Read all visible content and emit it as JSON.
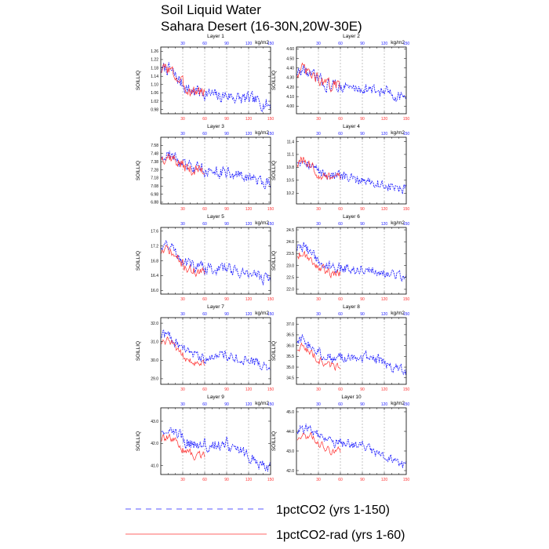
{
  "figure": {
    "title_line1": "Soil Liquid Water",
    "title_line2": "Sahara Desert (16-30N,20W-30E)"
  },
  "legend": {
    "entries": [
      {
        "label": "1pctCO2 (yrs 1-150)",
        "color": "#2020ff",
        "dash": "dashed"
      },
      {
        "label": "1pctCO2-rad (yrs 1-60)",
        "color": "#ff3030",
        "dash": "solid"
      }
    ]
  },
  "colors": {
    "blue": "#2020ff",
    "red": "#ff3030",
    "axis": "#000000",
    "grid": "#888888"
  },
  "chart_data": [
    {
      "type": "line",
      "title": "Layer 1",
      "ylabel": "SOILLIQ",
      "units": "kg/m2",
      "xlim": [
        0,
        150
      ],
      "ylim": [
        0.96,
        1.28
      ],
      "yticks": [
        0.98,
        1.02,
        1.06,
        1.1,
        1.14,
        1.18,
        1.22,
        1.26
      ],
      "yticklabels": [
        "0.98",
        "1.02",
        "1.06",
        "1.10",
        "1.14",
        "1.18",
        "1.22",
        "1.26"
      ],
      "xticks": [
        30,
        60,
        90,
        120,
        150
      ],
      "grid_x": [
        30,
        60,
        90,
        120
      ],
      "blue_knots": [
        [
          0,
          1.17
        ],
        [
          10,
          1.18
        ],
        [
          20,
          1.14
        ],
        [
          30,
          1.1
        ],
        [
          40,
          1.07
        ],
        [
          50,
          1.07
        ],
        [
          60,
          1.06
        ],
        [
          70,
          1.05
        ],
        [
          80,
          1.04
        ],
        [
          90,
          1.05
        ],
        [
          100,
          1.04
        ],
        [
          110,
          1.03
        ],
        [
          120,
          1.03
        ],
        [
          130,
          1.02
        ],
        [
          140,
          1.01
        ],
        [
          150,
          1.0
        ]
      ],
      "blue_amp": 0.05,
      "red_amp": 0.05,
      "red_offset": 0.0
    },
    {
      "type": "line",
      "title": "Layer 2",
      "ylabel": "SOILLIQ",
      "units": "kg/m2",
      "xlim": [
        0,
        150
      ],
      "ylim": [
        3.92,
        4.62
      ],
      "yticks": [
        4.0,
        4.1,
        4.2,
        4.3,
        4.4,
        4.5,
        4.6
      ],
      "yticklabels": [
        "4.00",
        "4.10",
        "4.20",
        "4.30",
        "4.40",
        "4.50",
        "4.60"
      ],
      "xticks": [
        30,
        60,
        90,
        120,
        150
      ],
      "grid_x": [
        30,
        60,
        90,
        120
      ],
      "blue_knots": [
        [
          0,
          4.35
        ],
        [
          10,
          4.38
        ],
        [
          20,
          4.32
        ],
        [
          30,
          4.28
        ],
        [
          40,
          4.22
        ],
        [
          50,
          4.22
        ],
        [
          60,
          4.21
        ],
        [
          70,
          4.2
        ],
        [
          80,
          4.18
        ],
        [
          90,
          4.19
        ],
        [
          100,
          4.17
        ],
        [
          110,
          4.16
        ],
        [
          120,
          4.15
        ],
        [
          130,
          4.13
        ],
        [
          140,
          4.11
        ],
        [
          150,
          4.1
        ]
      ],
      "blue_amp": 0.1,
      "red_amp": 0.1,
      "red_offset": 0.0
    },
    {
      "type": "line",
      "title": "Layer 3",
      "ylabel": "SOILLIQ",
      "units": "kg/m2",
      "xlim": [
        0,
        150
      ],
      "ylim": [
        6.86,
        7.68
      ],
      "yticks": [
        6.88,
        6.98,
        7.08,
        7.18,
        7.28,
        7.38,
        7.48,
        7.58
      ],
      "yticklabels": [
        "6.88",
        "6.98",
        "7.08",
        "7.18",
        "7.28",
        "7.38",
        "7.48",
        "7.58"
      ],
      "xticks": [
        30,
        60,
        90,
        120,
        150
      ],
      "grid_x": [
        30,
        60,
        90,
        120
      ],
      "blue_knots": [
        [
          0,
          7.45
        ],
        [
          10,
          7.48
        ],
        [
          20,
          7.42
        ],
        [
          30,
          7.35
        ],
        [
          40,
          7.3
        ],
        [
          50,
          7.3
        ],
        [
          60,
          7.28
        ],
        [
          70,
          7.26
        ],
        [
          80,
          7.24
        ],
        [
          90,
          7.25
        ],
        [
          100,
          7.22
        ],
        [
          110,
          7.2
        ],
        [
          120,
          7.18
        ],
        [
          130,
          7.16
        ],
        [
          140,
          7.14
        ],
        [
          150,
          7.12
        ]
      ],
      "blue_amp": 0.12,
      "red_amp": 0.12,
      "red_offset": -0.02
    },
    {
      "type": "line",
      "title": "Layer 4",
      "ylabel": "SOILLIQ",
      "units": "kg/m2",
      "xlim": [
        0,
        150
      ],
      "ylim": [
        9.95,
        11.5
      ],
      "yticks": [
        10.2,
        10.5,
        10.8,
        11.1,
        11.4
      ],
      "yticklabels": [
        "10.2",
        "10.5",
        "10.8",
        "11.1",
        "11.4"
      ],
      "xticks": [
        30,
        60,
        90,
        120,
        150
      ],
      "grid_x": [
        30,
        60,
        90,
        120
      ],
      "blue_knots": [
        [
          0,
          10.95
        ],
        [
          10,
          11.0
        ],
        [
          20,
          10.85
        ],
        [
          30,
          10.72
        ],
        [
          40,
          10.62
        ],
        [
          50,
          10.62
        ],
        [
          60,
          10.58
        ],
        [
          70,
          10.55
        ],
        [
          80,
          10.5
        ],
        [
          90,
          10.52
        ],
        [
          100,
          10.47
        ],
        [
          110,
          10.43
        ],
        [
          120,
          10.38
        ],
        [
          130,
          10.34
        ],
        [
          140,
          10.3
        ],
        [
          150,
          10.26
        ]
      ],
      "blue_amp": 0.2,
      "red_amp": 0.2,
      "red_offset": -0.05
    },
    {
      "type": "line",
      "title": "Layer 5",
      "ylabel": "SOILLIQ",
      "units": "kg/m2",
      "xlim": [
        0,
        150
      ],
      "ylim": [
        15.9,
        17.7
      ],
      "yticks": [
        16.0,
        16.4,
        16.8,
        17.2,
        17.6
      ],
      "yticklabels": [
        "16.0",
        "16.4",
        "16.8",
        "17.2",
        "17.6"
      ],
      "xticks": [
        30,
        60,
        90,
        120,
        150
      ],
      "grid_x": [
        30,
        60,
        90,
        120
      ],
      "blue_knots": [
        [
          0,
          17.2
        ],
        [
          10,
          17.25
        ],
        [
          20,
          17.05
        ],
        [
          30,
          16.85
        ],
        [
          40,
          16.7
        ],
        [
          50,
          16.65
        ],
        [
          60,
          16.6
        ],
        [
          70,
          16.6
        ],
        [
          80,
          16.55
        ],
        [
          90,
          16.6
        ],
        [
          100,
          16.55
        ],
        [
          110,
          16.5
        ],
        [
          120,
          16.45
        ],
        [
          130,
          16.4
        ],
        [
          140,
          16.35
        ],
        [
          150,
          16.3
        ]
      ],
      "blue_amp": 0.25,
      "red_amp": 0.22,
      "red_offset": -0.15
    },
    {
      "type": "line",
      "title": "Layer 6",
      "ylabel": "SOILLIQ",
      "units": "kg/m2",
      "xlim": [
        0,
        150
      ],
      "ylim": [
        21.8,
        24.6
      ],
      "yticks": [
        22.0,
        22.5,
        23.0,
        23.5,
        24.0,
        24.5
      ],
      "yticklabels": [
        "22.0",
        "22.5",
        "23.0",
        "23.5",
        "24.0",
        "24.5"
      ],
      "xticks": [
        30,
        60,
        90,
        120,
        150
      ],
      "grid_x": [
        30,
        60,
        90,
        120
      ],
      "blue_knots": [
        [
          0,
          23.7
        ],
        [
          10,
          23.8
        ],
        [
          20,
          23.5
        ],
        [
          30,
          23.2
        ],
        [
          40,
          23.0
        ],
        [
          50,
          22.95
        ],
        [
          60,
          22.9
        ],
        [
          70,
          22.9
        ],
        [
          80,
          22.85
        ],
        [
          90,
          22.9
        ],
        [
          100,
          22.85
        ],
        [
          110,
          22.8
        ],
        [
          120,
          22.7
        ],
        [
          130,
          22.6
        ],
        [
          140,
          22.55
        ],
        [
          150,
          22.5
        ]
      ],
      "blue_amp": 0.35,
      "red_amp": 0.3,
      "red_offset": -0.25
    },
    {
      "type": "line",
      "title": "Layer 7",
      "ylabel": "SOILLIQ",
      "units": "kg/m2",
      "xlim": [
        0,
        150
      ],
      "ylim": [
        28.7,
        32.3
      ],
      "yticks": [
        29.0,
        30.0,
        31.0,
        32.0
      ],
      "yticklabels": [
        "29.0",
        "30.0",
        "31.0",
        "32.0"
      ],
      "xticks": [
        30,
        60,
        90,
        120,
        150
      ],
      "grid_x": [
        30,
        60,
        90,
        120
      ],
      "blue_knots": [
        [
          0,
          31.3
        ],
        [
          10,
          31.4
        ],
        [
          20,
          31.0
        ],
        [
          30,
          30.6
        ],
        [
          40,
          30.3
        ],
        [
          50,
          30.2
        ],
        [
          60,
          30.2
        ],
        [
          70,
          30.3
        ],
        [
          80,
          30.2
        ],
        [
          90,
          30.3
        ],
        [
          100,
          30.2
        ],
        [
          110,
          30.1
        ],
        [
          120,
          29.9
        ],
        [
          130,
          29.8
        ],
        [
          140,
          29.7
        ],
        [
          150,
          29.6
        ]
      ],
      "blue_amp": 0.45,
      "red_amp": 0.35,
      "red_offset": -0.35
    },
    {
      "type": "line",
      "title": "Layer 8",
      "ylabel": "SOILLIQ",
      "units": "kg/m2",
      "xlim": [
        0,
        150
      ],
      "ylim": [
        34.2,
        37.3
      ],
      "yticks": [
        34.5,
        35.0,
        35.5,
        36.0,
        36.5,
        37.0
      ],
      "yticklabels": [
        "34.5",
        "35.0",
        "35.5",
        "36.0",
        "36.5",
        "37.0"
      ],
      "xticks": [
        30,
        60,
        90,
        120,
        150
      ],
      "grid_x": [
        30,
        60,
        90,
        120
      ],
      "blue_knots": [
        [
          0,
          36.2
        ],
        [
          10,
          36.3
        ],
        [
          20,
          36.0
        ],
        [
          30,
          35.7
        ],
        [
          40,
          35.5
        ],
        [
          50,
          35.4
        ],
        [
          60,
          35.4
        ],
        [
          70,
          35.5
        ],
        [
          80,
          35.4
        ],
        [
          90,
          35.5
        ],
        [
          100,
          35.4
        ],
        [
          110,
          35.3
        ],
        [
          120,
          35.2
        ],
        [
          130,
          35.05
        ],
        [
          140,
          34.9
        ],
        [
          150,
          34.8
        ]
      ],
      "blue_amp": 0.4,
      "red_amp": 0.3,
      "red_offset": -0.35
    },
    {
      "type": "line",
      "title": "Layer 9",
      "ylabel": "SOILLIQ",
      "units": "kg/m2",
      "xlim": [
        0,
        150
      ],
      "ylim": [
        40.6,
        43.6
      ],
      "yticks": [
        41.0,
        42.0,
        43.0
      ],
      "yticklabels": [
        "41.0",
        "42.0",
        "43.0"
      ],
      "xticks": [
        30,
        60,
        90,
        120,
        150
      ],
      "grid_x": [
        30,
        60,
        90,
        120
      ],
      "blue_knots": [
        [
          0,
          42.6
        ],
        [
          10,
          42.7
        ],
        [
          20,
          42.5
        ],
        [
          30,
          42.2
        ],
        [
          40,
          42.0
        ],
        [
          50,
          41.9
        ],
        [
          60,
          41.9
        ],
        [
          70,
          42.0
        ],
        [
          80,
          41.9
        ],
        [
          90,
          42.0
        ],
        [
          100,
          41.8
        ],
        [
          110,
          41.6
        ],
        [
          120,
          41.4
        ],
        [
          130,
          41.2
        ],
        [
          140,
          41.0
        ],
        [
          150,
          40.9
        ]
      ],
      "blue_amp": 0.45,
      "red_amp": 0.3,
      "red_offset": -0.45
    },
    {
      "type": "line",
      "title": "Layer 10",
      "ylabel": "SOILLIQ",
      "units": "kg/m2",
      "xlim": [
        0,
        150
      ],
      "ylim": [
        41.8,
        45.2
      ],
      "yticks": [
        42.0,
        43.0,
        44.0,
        45.0
      ],
      "yticklabels": [
        "42.0",
        "43.0",
        "44.0",
        "45.0"
      ],
      "xticks": [
        30,
        60,
        90,
        120,
        150
      ],
      "grid_x": [
        30,
        60,
        90,
        120
      ],
      "blue_knots": [
        [
          0,
          44.0
        ],
        [
          10,
          44.2
        ],
        [
          20,
          44.1
        ],
        [
          30,
          43.8
        ],
        [
          40,
          43.5
        ],
        [
          50,
          43.4
        ],
        [
          60,
          43.4
        ],
        [
          70,
          43.4
        ],
        [
          80,
          43.3
        ],
        [
          90,
          43.3
        ],
        [
          100,
          43.1
        ],
        [
          110,
          42.9
        ],
        [
          120,
          42.7
        ],
        [
          130,
          42.5
        ],
        [
          140,
          42.3
        ],
        [
          150,
          42.2
        ]
      ],
      "blue_amp": 0.4,
      "red_amp": 0.3,
      "red_offset": -0.4
    }
  ]
}
